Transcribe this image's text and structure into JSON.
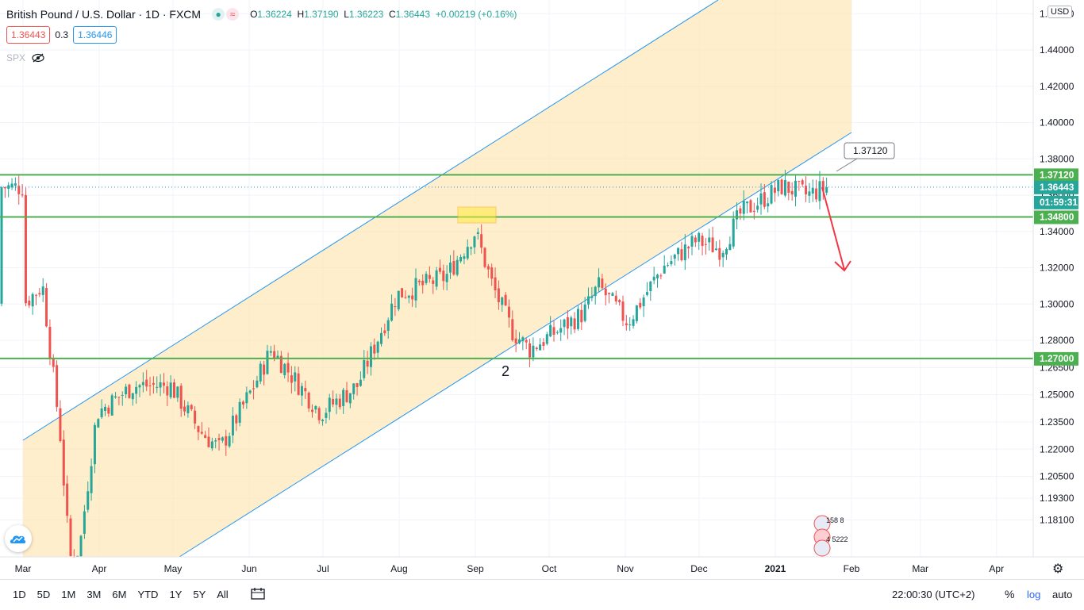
{
  "header": {
    "symbol": "British Pound / U.S. Dollar · 1D · FXCM",
    "open_label": "O",
    "open": "1.36224",
    "high_label": "H",
    "high": "1.37190",
    "low_label": "L",
    "low": "1.36223",
    "close_label": "C",
    "close": "1.36443",
    "change": "+0.00219 (+0.16%)"
  },
  "quote": {
    "bid": "1.36443",
    "spread": "0.3",
    "ask": "1.36446"
  },
  "compare": {
    "symbol": "SPX"
  },
  "currency": "USD",
  "chart_data": {
    "type": "candlestick",
    "y_ticks": [
      "1.46000",
      "1.44000",
      "1.42000",
      "1.40000",
      "1.38000",
      "1.36000",
      "1.34000",
      "1.32000",
      "1.30000",
      "1.28000",
      "1.26500",
      "1.25000",
      "1.23500",
      "1.22000",
      "1.20500",
      "1.19300",
      "1.18100"
    ],
    "x_ticks": [
      "Mar",
      "Apr",
      "May",
      "Jun",
      "Jul",
      "Aug",
      "Sep",
      "Oct",
      "Nov",
      "Dec",
      "2021",
      "Feb",
      "Mar",
      "Apr"
    ],
    "price_labels": [
      {
        "text": "1.37120",
        "kind": "level"
      },
      {
        "text": "1.36443",
        "kind": "last"
      },
      {
        "text": "01:59:31",
        "kind": "countdown"
      },
      {
        "text": "1.34800",
        "kind": "level"
      },
      {
        "text": "1.27000",
        "kind": "level"
      }
    ],
    "horizontal_levels": [
      1.3712,
      1.348,
      1.27
    ],
    "last_price": 1.36443,
    "callout": "1.37120",
    "annotation_text": "2",
    "colors": {
      "up": "#26a69a",
      "down": "#ef5350",
      "level": "#4caf50",
      "channel": "#ffe0a0",
      "channel_line": "#2196f3",
      "arrow": "#f23645"
    },
    "series_close_path": [
      [
        "2020-03-01",
        1.3
      ],
      [
        "2020-03-09",
        1.31
      ],
      [
        "2020-03-12",
        1.275
      ],
      [
        "2020-03-16",
        1.23
      ],
      [
        "2020-03-20",
        1.16
      ],
      [
        "2020-03-24",
        1.165
      ],
      [
        "2020-03-31",
        1.24
      ],
      [
        "2020-04-15",
        1.255
      ],
      [
        "2020-04-30",
        1.255
      ],
      [
        "2020-05-12",
        1.23
      ],
      [
        "2020-05-20",
        1.22
      ],
      [
        "2020-06-03",
        1.255
      ],
      [
        "2020-06-10",
        1.275
      ],
      [
        "2020-06-30",
        1.24
      ],
      [
        "2020-07-15",
        1.255
      ],
      [
        "2020-07-31",
        1.305
      ],
      [
        "2020-08-20",
        1.315
      ],
      [
        "2020-09-01",
        1.34
      ],
      [
        "2020-09-08",
        1.31
      ],
      [
        "2020-09-16",
        1.285
      ],
      [
        "2020-09-23",
        1.275
      ],
      [
        "2020-10-15",
        1.295
      ],
      [
        "2020-10-21",
        1.31
      ],
      [
        "2020-11-02",
        1.29
      ],
      [
        "2020-11-16",
        1.32
      ],
      [
        "2020-11-30",
        1.335
      ],
      [
        "2020-12-10",
        1.33
      ],
      [
        "2020-12-18",
        1.35
      ],
      [
        "2021-01-04",
        1.365
      ],
      [
        "2021-01-14",
        1.36
      ],
      [
        "2021-01-22",
        1.36443
      ]
    ]
  },
  "timeframes": [
    "1D",
    "5D",
    "1M",
    "3M",
    "6M",
    "YTD",
    "1Y",
    "5Y",
    "All"
  ],
  "clock": "22:00:30 (UTC+2)",
  "scale": {
    "percent": "%",
    "log": "log",
    "auto": "auto"
  },
  "calendar_earnings": {
    "top": "158 8",
    "bottom": "4 5222"
  }
}
